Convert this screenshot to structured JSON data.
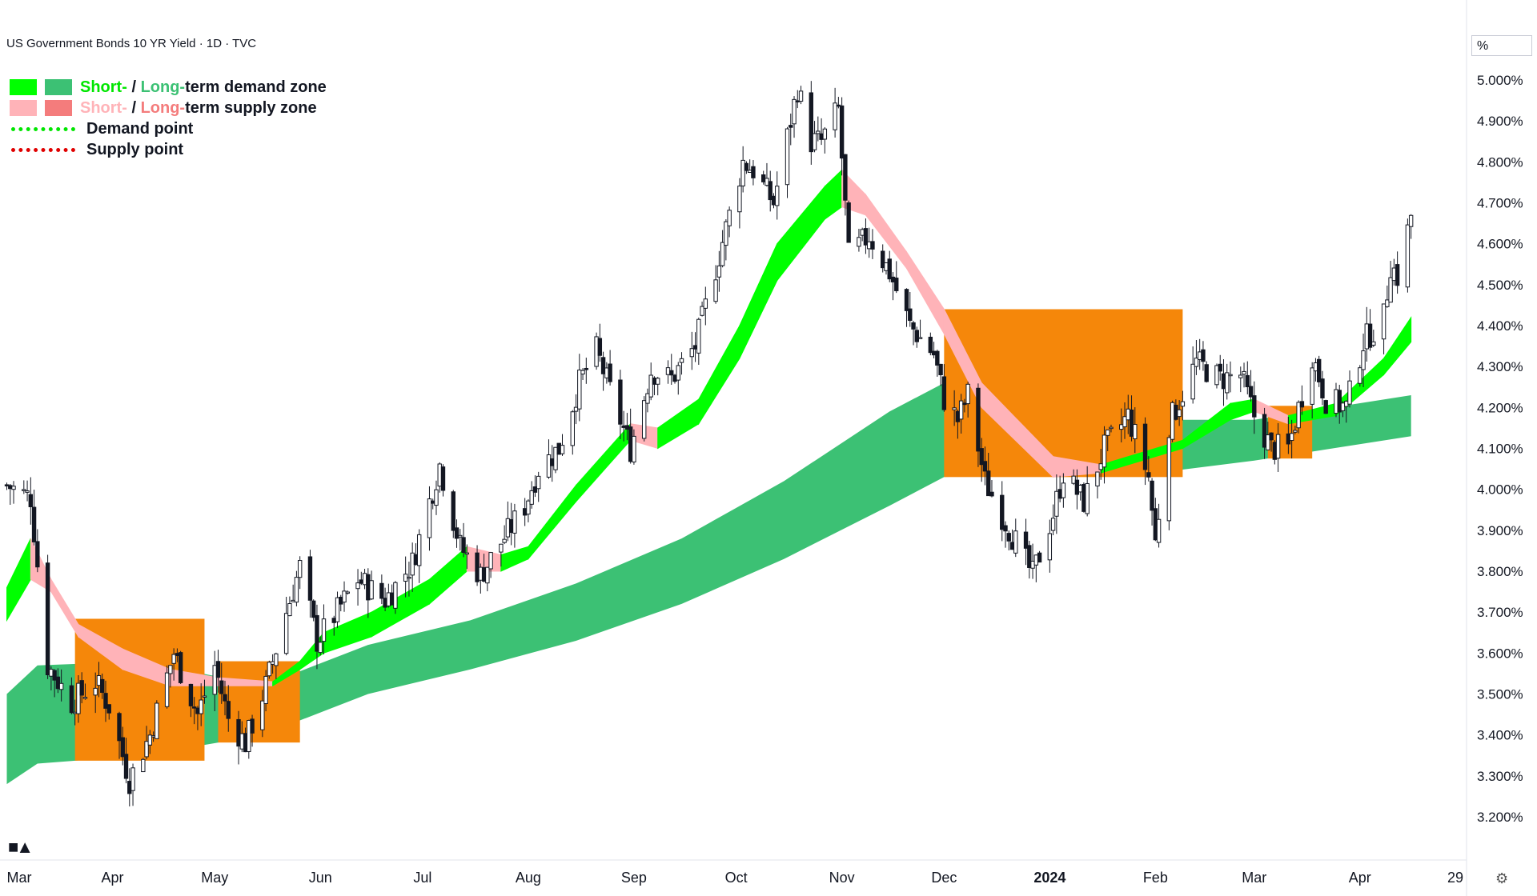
{
  "header": {
    "title": "US Government Bonds 10 YR Yield · 1D · TVC"
  },
  "legend": {
    "demand": {
      "short": "Short-",
      "sep": " / ",
      "long": "Long-",
      "rest": "term demand zone"
    },
    "supply": {
      "short": "Short-",
      "sep": " / ",
      "long": "Long-",
      "rest": "term supply zone"
    },
    "demand_point": "Demand point",
    "supply_point": "Supply point"
  },
  "price_axis": {
    "unit": "%"
  },
  "colors": {
    "short_demand": "#00ff00",
    "long_demand": "#3cc174",
    "short_supply": "#ffb3b8",
    "long_supply": "#f47c7c",
    "overlap_zone": "#f5870a",
    "demand_point": "#00e600",
    "supply_point": "#e00000",
    "candle": "#131722"
  },
  "icons": {
    "logo": "tradingview-logo-icon",
    "settings": "gear-icon"
  },
  "chart_data": {
    "type": "candlestick",
    "title": "US Government Bonds 10 YR Yield · 1D · TVC",
    "y_unit": "%",
    "ylim": [
      3.1,
      5.1
    ],
    "y_ticks": [
      "3.200%",
      "3.300%",
      "3.400%",
      "3.500%",
      "3.600%",
      "3.700%",
      "3.800%",
      "3.900%",
      "4.000%",
      "4.100%",
      "4.200%",
      "4.300%",
      "4.400%",
      "4.500%",
      "4.600%",
      "4.700%",
      "4.800%",
      "4.900%",
      "5.000%"
    ],
    "x_labels": [
      "Mar",
      "Apr",
      "May",
      "Jun",
      "Jul",
      "Aug",
      "Sep",
      "Oct",
      "Nov",
      "Dec",
      "2024",
      "Feb",
      "Mar",
      "Apr",
      "29"
    ],
    "grid": false,
    "legend_position": "top-left",
    "close_path": [
      {
        "x": "2023-03-01",
        "y": 4.01
      },
      {
        "x": "2023-03-08",
        "y": 3.98
      },
      {
        "x": "2023-03-13",
        "y": 3.57
      },
      {
        "x": "2023-03-20",
        "y": 3.48
      },
      {
        "x": "2023-03-27",
        "y": 3.53
      },
      {
        "x": "2023-03-31",
        "y": 3.47
      },
      {
        "x": "2023-04-06",
        "y": 3.29
      },
      {
        "x": "2023-04-12",
        "y": 3.4
      },
      {
        "x": "2023-04-19",
        "y": 3.6
      },
      {
        "x": "2023-04-26",
        "y": 3.45
      },
      {
        "x": "2023-05-01",
        "y": 3.57
      },
      {
        "x": "2023-05-05",
        "y": 3.44
      },
      {
        "x": "2023-05-10",
        "y": 3.38
      },
      {
        "x": "2023-05-16",
        "y": 3.52
      },
      {
        "x": "2023-05-22",
        "y": 3.7
      },
      {
        "x": "2023-05-26",
        "y": 3.81
      },
      {
        "x": "2023-05-31",
        "y": 3.63
      },
      {
        "x": "2023-06-05",
        "y": 3.69
      },
      {
        "x": "2023-06-12",
        "y": 3.78
      },
      {
        "x": "2023-06-20",
        "y": 3.73
      },
      {
        "x": "2023-06-28",
        "y": 3.82
      },
      {
        "x": "2023-07-06",
        "y": 4.06
      },
      {
        "x": "2023-07-12",
        "y": 3.86
      },
      {
        "x": "2023-07-18",
        "y": 3.79
      },
      {
        "x": "2023-07-24",
        "y": 3.87
      },
      {
        "x": "2023-07-31",
        "y": 3.96
      },
      {
        "x": "2023-08-04",
        "y": 4.05
      },
      {
        "x": "2023-08-10",
        "y": 4.1
      },
      {
        "x": "2023-08-16",
        "y": 4.26
      },
      {
        "x": "2023-08-21",
        "y": 4.34
      },
      {
        "x": "2023-08-25",
        "y": 4.24
      },
      {
        "x": "2023-08-31",
        "y": 4.1
      },
      {
        "x": "2023-09-06",
        "y": 4.29
      },
      {
        "x": "2023-09-12",
        "y": 4.27
      },
      {
        "x": "2023-09-19",
        "y": 4.35
      },
      {
        "x": "2023-09-25",
        "y": 4.54
      },
      {
        "x": "2023-10-03",
        "y": 4.8
      },
      {
        "x": "2023-10-06",
        "y": 4.78
      },
      {
        "x": "2023-10-12",
        "y": 4.7
      },
      {
        "x": "2023-10-19",
        "y": 4.98
      },
      {
        "x": "2023-10-23",
        "y": 4.85
      },
      {
        "x": "2023-10-26",
        "y": 4.85
      },
      {
        "x": "2023-10-31",
        "y": 4.93
      },
      {
        "x": "2023-11-03",
        "y": 4.57
      },
      {
        "x": "2023-11-09",
        "y": 4.62
      },
      {
        "x": "2023-11-15",
        "y": 4.53
      },
      {
        "x": "2023-11-21",
        "y": 4.4
      },
      {
        "x": "2023-11-28",
        "y": 4.33
      },
      {
        "x": "2023-12-01",
        "y": 4.22
      },
      {
        "x": "2023-12-05",
        "y": 4.17
      },
      {
        "x": "2023-12-08",
        "y": 4.23
      },
      {
        "x": "2023-12-13",
        "y": 4.02
      },
      {
        "x": "2023-12-19",
        "y": 3.92
      },
      {
        "x": "2023-12-27",
        "y": 3.79
      },
      {
        "x": "2024-01-02",
        "y": 3.94
      },
      {
        "x": "2024-01-05",
        "y": 4.04
      },
      {
        "x": "2024-01-11",
        "y": 3.97
      },
      {
        "x": "2024-01-17",
        "y": 4.1
      },
      {
        "x": "2024-01-24",
        "y": 4.18
      },
      {
        "x": "2024-01-30",
        "y": 4.03
      },
      {
        "x": "2024-02-01",
        "y": 3.87
      },
      {
        "x": "2024-02-05",
        "y": 4.16
      },
      {
        "x": "2024-02-13",
        "y": 4.31
      },
      {
        "x": "2024-02-20",
        "y": 4.27
      },
      {
        "x": "2024-02-26",
        "y": 4.28
      },
      {
        "x": "2024-03-01",
        "y": 4.18
      },
      {
        "x": "2024-03-06",
        "y": 4.1
      },
      {
        "x": "2024-03-11",
        "y": 4.1
      },
      {
        "x": "2024-03-18",
        "y": 4.33
      },
      {
        "x": "2024-03-22",
        "y": 4.22
      },
      {
        "x": "2024-03-28",
        "y": 4.2
      },
      {
        "x": "2024-04-02",
        "y": 4.36
      },
      {
        "x": "2024-04-08",
        "y": 4.42
      },
      {
        "x": "2024-04-10",
        "y": 4.55
      },
      {
        "x": "2024-04-12",
        "y": 4.52
      },
      {
        "x": "2024-04-15",
        "y": 4.63
      },
      {
        "x": "2024-04-16",
        "y": 4.67
      }
    ],
    "short_term_zone": [
      {
        "x": "2023-03-01",
        "lo": 3.68,
        "hi": 3.76,
        "type": "demand"
      },
      {
        "x": "2023-03-08",
        "lo": 3.78,
        "hi": 3.88,
        "type": "demand"
      },
      {
        "x": "2023-03-14",
        "lo": 3.75,
        "hi": 3.78,
        "type": "supply"
      },
      {
        "x": "2023-03-22",
        "lo": 3.64,
        "hi": 3.67,
        "type": "supply"
      },
      {
        "x": "2023-04-04",
        "lo": 3.56,
        "hi": 3.61,
        "type": "supply"
      },
      {
        "x": "2023-04-18",
        "lo": 3.52,
        "hi": 3.56,
        "type": "supply"
      },
      {
        "x": "2023-05-02",
        "lo": 3.52,
        "hi": 3.54,
        "type": "supply"
      },
      {
        "x": "2023-05-18",
        "lo": 3.52,
        "hi": 3.53,
        "type": "supply"
      },
      {
        "x": "2023-05-26",
        "lo": 3.56,
        "hi": 3.58,
        "type": "demand"
      },
      {
        "x": "2023-06-02",
        "lo": 3.6,
        "hi": 3.65,
        "type": "demand"
      },
      {
        "x": "2023-06-16",
        "lo": 3.64,
        "hi": 3.7,
        "type": "demand"
      },
      {
        "x": "2023-07-03",
        "lo": 3.72,
        "hi": 3.78,
        "type": "demand"
      },
      {
        "x": "2023-07-14",
        "lo": 3.8,
        "hi": 3.86,
        "type": "demand"
      },
      {
        "x": "2023-07-24",
        "lo": 3.8,
        "hi": 3.84,
        "type": "supply"
      },
      {
        "x": "2023-08-01",
        "lo": 3.83,
        "hi": 3.86,
        "type": "demand"
      },
      {
        "x": "2023-08-15",
        "lo": 3.97,
        "hi": 4.01,
        "type": "demand"
      },
      {
        "x": "2023-08-31",
        "lo": 4.12,
        "hi": 4.16,
        "type": "demand"
      },
      {
        "x": "2023-09-08",
        "lo": 4.1,
        "hi": 4.15,
        "type": "supply"
      },
      {
        "x": "2023-09-20",
        "lo": 4.16,
        "hi": 4.22,
        "type": "demand"
      },
      {
        "x": "2023-10-02",
        "lo": 4.32,
        "hi": 4.4,
        "type": "demand"
      },
      {
        "x": "2023-10-13",
        "lo": 4.51,
        "hi": 4.6,
        "type": "demand"
      },
      {
        "x": "2023-10-27",
        "lo": 4.66,
        "hi": 4.74,
        "type": "demand"
      },
      {
        "x": "2023-11-01",
        "lo": 4.69,
        "hi": 4.78,
        "type": "demand"
      },
      {
        "x": "2023-11-08",
        "lo": 4.67,
        "hi": 4.72,
        "type": "supply"
      },
      {
        "x": "2023-11-20",
        "lo": 4.54,
        "hi": 4.58,
        "type": "supply"
      },
      {
        "x": "2023-12-01",
        "lo": 4.38,
        "hi": 4.44,
        "type": "supply"
      },
      {
        "x": "2023-12-12",
        "lo": 4.2,
        "hi": 4.26,
        "type": "supply"
      },
      {
        "x": "2024-01-02",
        "lo": 4.03,
        "hi": 4.08,
        "type": "supply"
      },
      {
        "x": "2024-01-16",
        "lo": 4.04,
        "hi": 4.06,
        "type": "supply"
      },
      {
        "x": "2024-02-09",
        "lo": 4.1,
        "hi": 4.12,
        "type": "demand"
      },
      {
        "x": "2024-02-23",
        "lo": 4.17,
        "hi": 4.21,
        "type": "demand"
      },
      {
        "x": "2024-03-01",
        "lo": 4.19,
        "hi": 4.22,
        "type": "demand"
      },
      {
        "x": "2024-03-11",
        "lo": 4.16,
        "hi": 4.18,
        "type": "supply"
      },
      {
        "x": "2024-03-25",
        "lo": 4.18,
        "hi": 4.21,
        "type": "demand"
      },
      {
        "x": "2024-04-08",
        "lo": 4.28,
        "hi": 4.32,
        "type": "demand"
      },
      {
        "x": "2024-04-16",
        "lo": 4.36,
        "hi": 4.42,
        "type": "demand"
      }
    ],
    "long_term_zone": [
      {
        "x": "2023-03-01",
        "lo": 3.28,
        "hi": 3.5
      },
      {
        "x": "2023-03-10",
        "lo": 3.33,
        "hi": 3.57
      },
      {
        "x": "2023-04-10",
        "lo": 3.35,
        "hi": 3.58
      },
      {
        "x": "2023-05-15",
        "lo": 3.4,
        "hi": 3.52
      },
      {
        "x": "2023-06-15",
        "lo": 3.5,
        "hi": 3.62
      },
      {
        "x": "2023-07-15",
        "lo": 3.56,
        "hi": 3.68
      },
      {
        "x": "2023-08-15",
        "lo": 3.63,
        "hi": 3.77
      },
      {
        "x": "2023-09-15",
        "lo": 3.72,
        "hi": 3.88
      },
      {
        "x": "2023-10-15",
        "lo": 3.83,
        "hi": 4.02
      },
      {
        "x": "2023-11-15",
        "lo": 3.96,
        "hi": 4.19
      },
      {
        "x": "2023-12-01",
        "lo": 4.03,
        "hi": 4.26
      },
      {
        "x": "2024-01-01",
        "lo": 4.04,
        "hi": 4.2
      },
      {
        "x": "2024-02-01",
        "lo": 4.04,
        "hi": 4.17
      },
      {
        "x": "2024-03-01",
        "lo": 4.07,
        "hi": 4.17
      },
      {
        "x": "2024-04-16",
        "lo": 4.13,
        "hi": 4.23
      }
    ],
    "overlap_periods": [
      {
        "from": "2023-03-21",
        "to": "2023-04-28"
      },
      {
        "from": "2023-05-02",
        "to": "2023-05-26"
      },
      {
        "from": "2023-12-01",
        "to": "2024-02-09"
      },
      {
        "from": "2024-03-05",
        "to": "2024-03-18"
      }
    ]
  }
}
